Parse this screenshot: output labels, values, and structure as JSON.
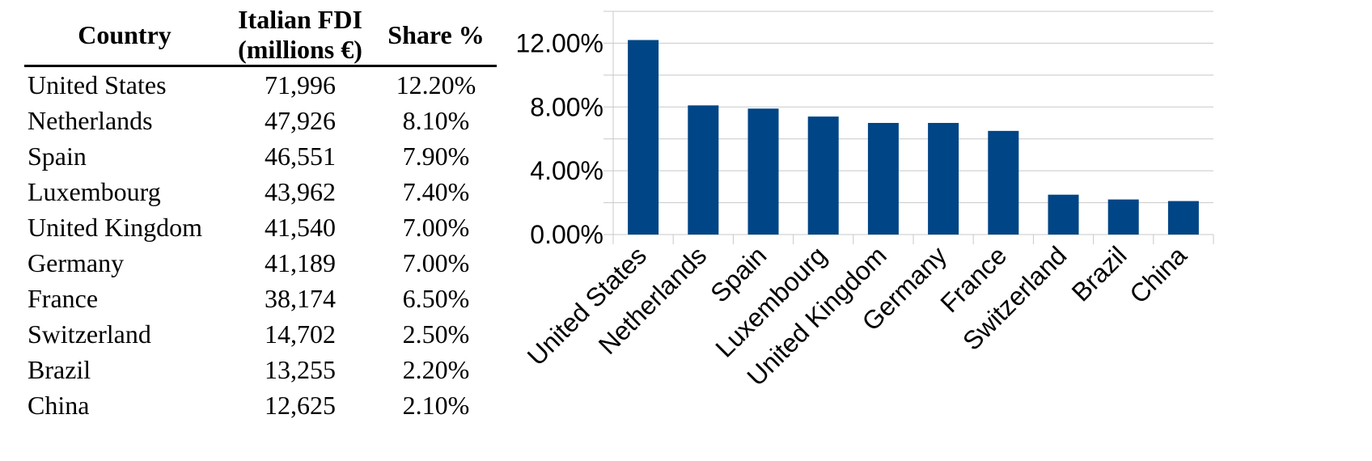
{
  "table": {
    "headers": {
      "country": "Country",
      "fdi_line1": "Italian FDI",
      "fdi_line2": "(millions €)",
      "share": "Share %"
    },
    "rows": [
      {
        "country": "United States",
        "fdi": "71,996",
        "share": "12.20%"
      },
      {
        "country": "Netherlands",
        "fdi": "47,926",
        "share": "8.10%"
      },
      {
        "country": "Spain",
        "fdi": "46,551",
        "share": "7.90%"
      },
      {
        "country": "Luxembourg",
        "fdi": "43,962",
        "share": "7.40%"
      },
      {
        "country": "United Kingdom",
        "fdi": "41,540",
        "share": "7.00%"
      },
      {
        "country": "Germany",
        "fdi": "41,189",
        "share": "7.00%"
      },
      {
        "country": "France",
        "fdi": "38,174",
        "share": "6.50%"
      },
      {
        "country": "Switzerland",
        "fdi": "14,702",
        "share": "2.50%"
      },
      {
        "country": "Brazil",
        "fdi": "13,255",
        "share": "2.20%"
      },
      {
        "country": "China",
        "fdi": "12,625",
        "share": "2.10%"
      }
    ]
  },
  "chart_data": {
    "type": "bar",
    "title": "",
    "xlabel": "",
    "ylabel": "",
    "categories": [
      "United States",
      "Netherlands",
      "Spain",
      "Luxembourg",
      "United Kingdom",
      "Germany",
      "France",
      "Switzerland",
      "Brazil",
      "China"
    ],
    "values": [
      12.2,
      8.1,
      7.9,
      7.4,
      7.0,
      7.0,
      6.5,
      2.5,
      2.2,
      2.1
    ],
    "ylim": [
      0,
      14
    ],
    "yticks": [
      0,
      4,
      8,
      12
    ],
    "ytick_labels": [
      "0.00%",
      "4.00%",
      "8.00%",
      "12.00%"
    ],
    "minor_gridlines_every": 2,
    "grid": true,
    "legend": "none",
    "bar_color": "#004586",
    "grid_color": "#c8c8c8"
  }
}
